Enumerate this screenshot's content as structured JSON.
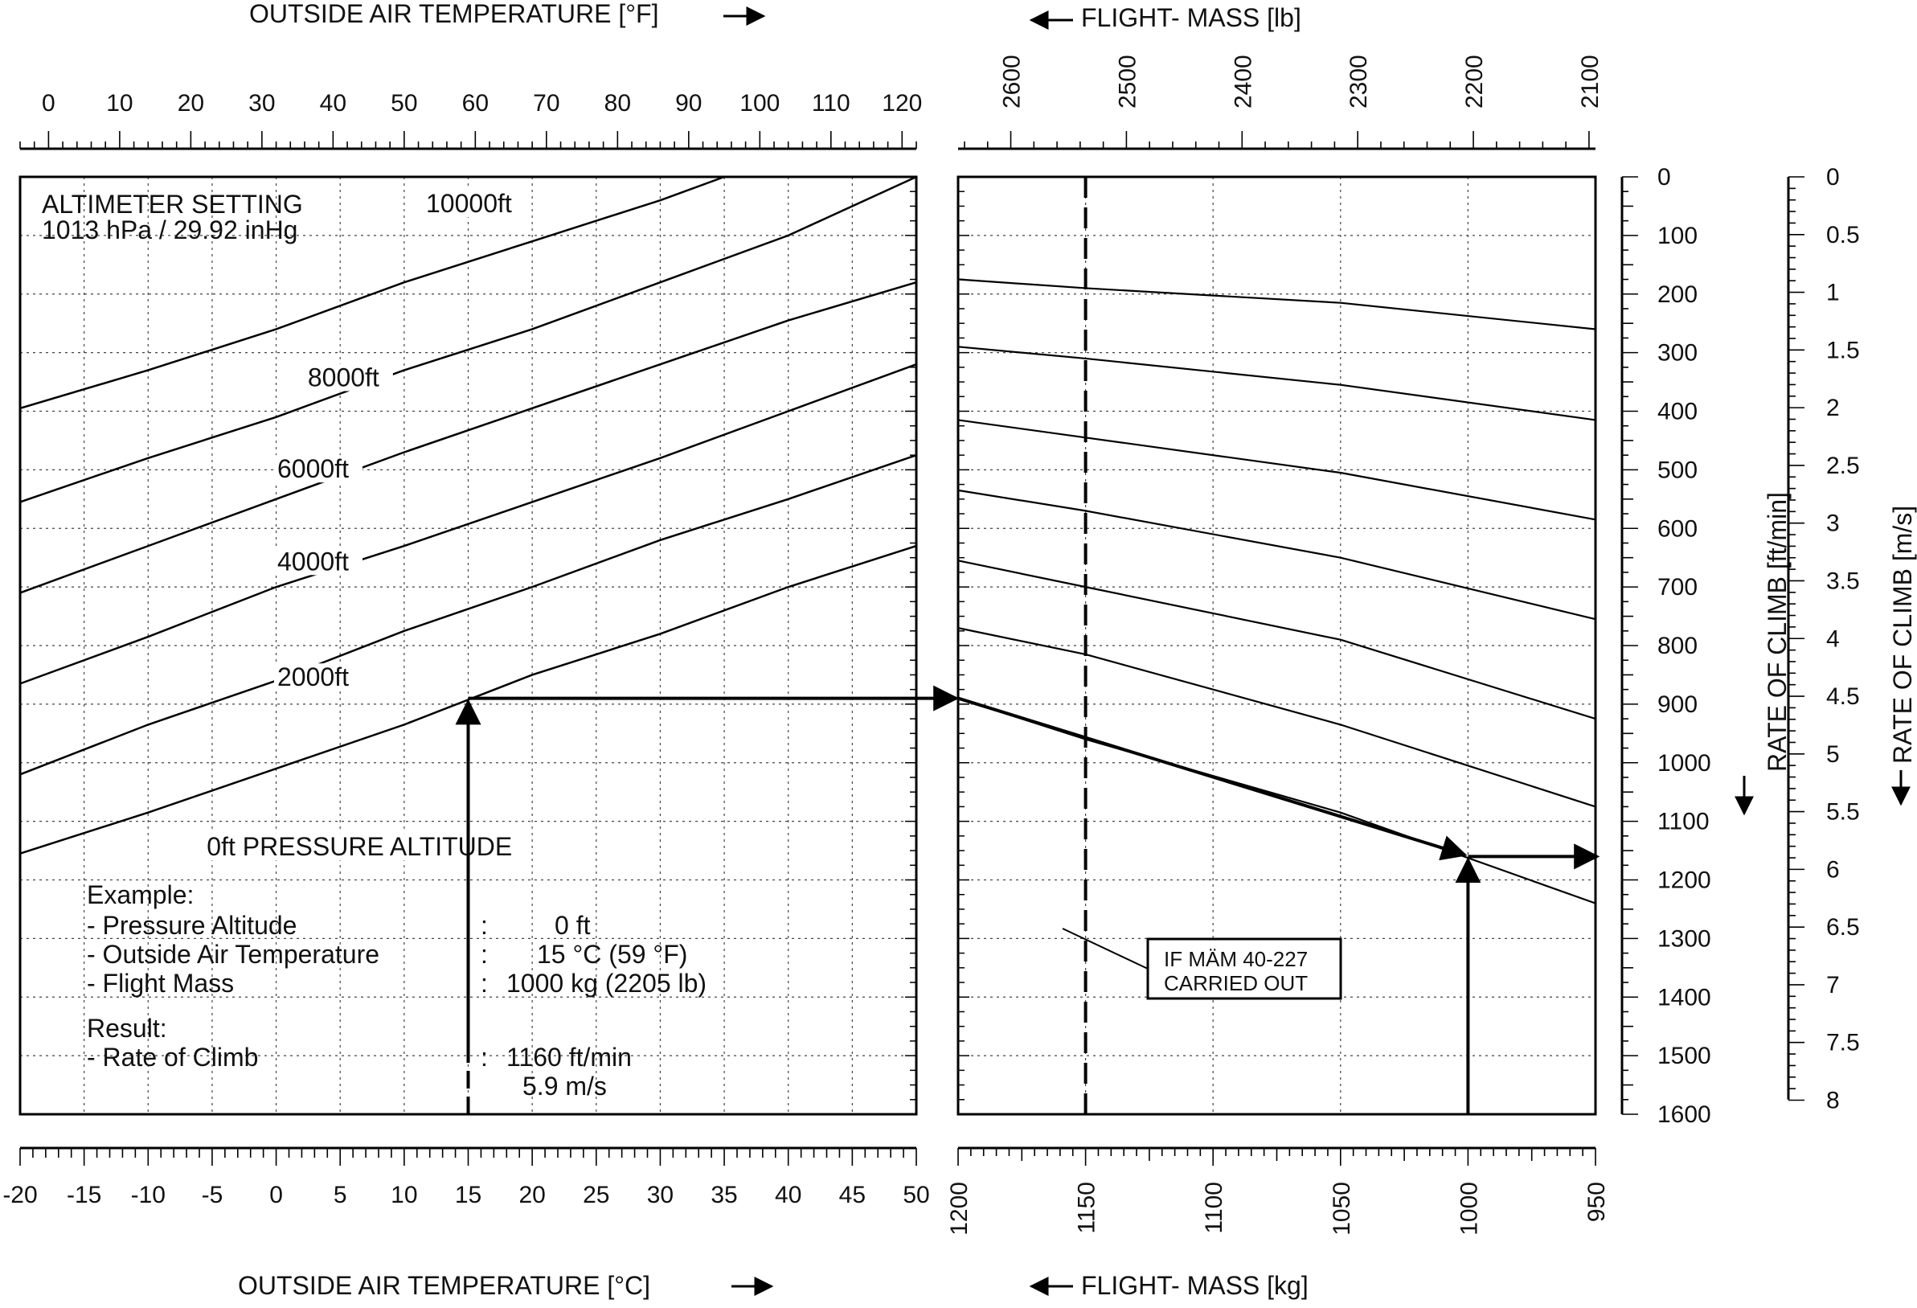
{
  "chart_data": {
    "type": "line",
    "left_panel": {
      "top_axis": {
        "title": "OUTSIDE AIR TEMPERATURE [°F]",
        "ticks": [
          "0",
          "10",
          "20",
          "30",
          "40",
          "50",
          "60",
          "70",
          "80",
          "90",
          "100",
          "110",
          "120"
        ],
        "range": [
          -4,
          122
        ]
      },
      "bottom_axis": {
        "title": "OUTSIDE AIR TEMPERATURE [°C]",
        "ticks": [
          "-20",
          "-15",
          "-10",
          "-5",
          "0",
          "5",
          "10",
          "15",
          "20",
          "25",
          "30",
          "35",
          "40",
          "45",
          "50"
        ],
        "range": [
          -20,
          50
        ]
      },
      "note_title": "ALTIMETER SETTING",
      "note_sub": "1013 hPa / 29.92 inHg",
      "series": [
        {
          "name": "10000ft",
          "x": [
            -20,
            -10,
            0,
            10,
            20,
            30,
            35
          ],
          "y": [
            395,
            330,
            260,
            180,
            110,
            40,
            0
          ]
        },
        {
          "name": "8000ft",
          "x": [
            -20,
            -10,
            0,
            10,
            20,
            30,
            40,
            50
          ],
          "y": [
            555,
            480,
            410,
            330,
            260,
            180,
            100,
            0
          ]
        },
        {
          "name": "6000ft",
          "x": [
            -20,
            -10,
            0,
            10,
            20,
            30,
            40,
            50
          ],
          "y": [
            710,
            630,
            550,
            470,
            395,
            320,
            245,
            180
          ]
        },
        {
          "name": "4000ft",
          "x": [
            -20,
            -10,
            0,
            10,
            20,
            30,
            40,
            50
          ],
          "y": [
            865,
            785,
            700,
            630,
            555,
            480,
            400,
            320
          ]
        },
        {
          "name": "2000ft",
          "x": [
            -20,
            -10,
            0,
            10,
            20,
            30,
            40,
            50
          ],
          "y": [
            1020,
            935,
            860,
            775,
            700,
            620,
            550,
            475
          ]
        },
        {
          "name": "0ft PRESSURE ALTITUDE",
          "x": [
            -20,
            -10,
            0,
            10,
            20,
            30,
            40,
            50
          ],
          "y": [
            1155,
            1085,
            1010,
            935,
            850,
            780,
            700,
            630
          ]
        }
      ],
      "example": {
        "heading": "Example:",
        "rows": [
          {
            "label": "- Pressure Altitude",
            "value": "0 ft"
          },
          {
            "label": "- Outside Air Temperature",
            "value": "15 °C (59 °F)"
          },
          {
            "label": "- Flight Mass",
            "value": "1000 kg (2205 lb)"
          }
        ],
        "result_heading": "Result:",
        "result_label": "- Rate of Climb",
        "result_values": [
          "1160 ft/min",
          "5.9 m/s"
        ]
      }
    },
    "right_panel": {
      "top_axis": {
        "title": "FLIGHT- MASS [lb]",
        "ticks": [
          "2600",
          "2500",
          "2400",
          "2300",
          "2200",
          "2100"
        ]
      },
      "bottom_axis": {
        "title": "FLIGHT- MASS [kg]",
        "ticks": [
          "1200",
          "1150",
          "1100",
          "1050",
          "1000",
          "950"
        ],
        "range": [
          1200,
          950
        ]
      },
      "guide_lines": [
        {
          "x": [
            1200,
            1150,
            1050,
            950
          ],
          "y": [
            175,
            190,
            215,
            260
          ]
        },
        {
          "x": [
            1200,
            1150,
            1050,
            950
          ],
          "y": [
            290,
            310,
            355,
            415
          ]
        },
        {
          "x": [
            1200,
            1150,
            1050,
            950
          ],
          "y": [
            415,
            445,
            505,
            585
          ]
        },
        {
          "x": [
            1200,
            1150,
            1050,
            950
          ],
          "y": [
            535,
            570,
            650,
            755
          ]
        },
        {
          "x": [
            1200,
            1150,
            1050,
            950
          ],
          "y": [
            655,
            700,
            790,
            925
          ]
        },
        {
          "x": [
            1200,
            1150,
            1050,
            950
          ],
          "y": [
            770,
            815,
            935,
            1075
          ]
        },
        {
          "x": [
            1200,
            1150,
            1050,
            950
          ],
          "y": [
            890,
            960,
            1085,
            1240
          ]
        }
      ],
      "dashed_mass_kg": 1150,
      "box_label": [
        "IF MÄM 40-227",
        "CARRIED OUT"
      ]
    },
    "right_axes": {
      "ftmin": {
        "label": "RATE OF CLIMB [ft/min]",
        "ticks": [
          "0",
          "100",
          "200",
          "300",
          "400",
          "500",
          "600",
          "700",
          "800",
          "900",
          "1000",
          "1100",
          "1200",
          "1300",
          "1400",
          "1500",
          "1600"
        ],
        "range": [
          0,
          1600
        ]
      },
      "ms": {
        "label": "RATE OF CLIMB [m/s]",
        "ticks": [
          "0",
          "0.5",
          "1",
          "1.5",
          "2",
          "2.5",
          "3",
          "3.5",
          "4",
          "4.5",
          "5",
          "5.5",
          "6",
          "6.5",
          "7",
          "7.5",
          "8"
        ],
        "range": [
          0,
          8
        ]
      }
    },
    "example_path": {
      "oat_c": 15,
      "roc_at_1200kg": 890,
      "mass_kg": 1000,
      "roc_result": 1160
    }
  }
}
